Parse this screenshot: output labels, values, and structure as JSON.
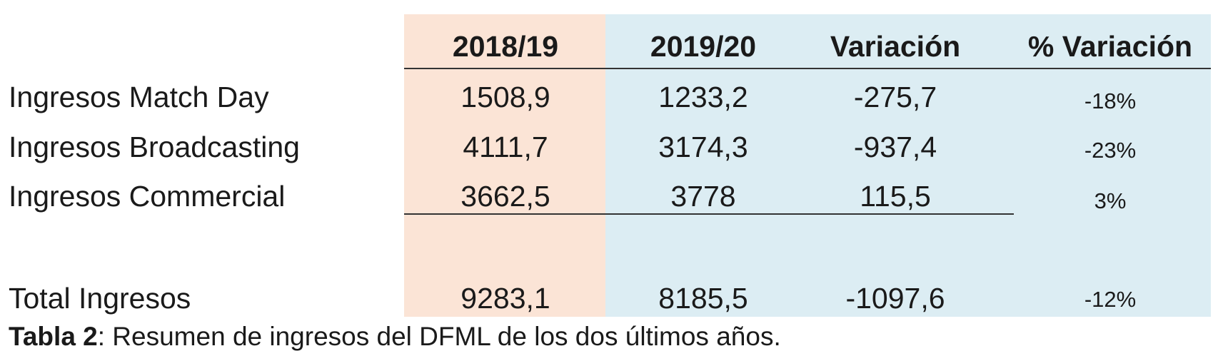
{
  "colors": {
    "col_2018_bg": "#fbe4d6",
    "col_rest_bg": "#dcedf3",
    "text": "#1a1a1a"
  },
  "table": {
    "headers": [
      "2018/19",
      "2019/20",
      "Variación",
      "% Variación"
    ],
    "rows": [
      {
        "label": "Ingresos Match Day",
        "v2018": "1508,9",
        "v2019": "1233,2",
        "variacion": "-275,7",
        "pct": "-18%"
      },
      {
        "label": "Ingresos Broadcasting",
        "v2018": "4111,7",
        "v2019": "3174,3",
        "variacion": "-937,4",
        "pct": "-23%"
      },
      {
        "label": "Ingresos Commercial",
        "v2018": "3662,5",
        "v2019": "3778",
        "variacion": "115,5",
        "pct": "3%"
      }
    ],
    "total": {
      "label": "Total Ingresos",
      "v2018": "9283,1",
      "v2019": "8185,5",
      "variacion": "-1097,6",
      "pct": "-12%"
    }
  },
  "caption": {
    "bold": "Tabla 2",
    "text": ": Resumen de ingresos del DFML de los dos últimos años."
  }
}
